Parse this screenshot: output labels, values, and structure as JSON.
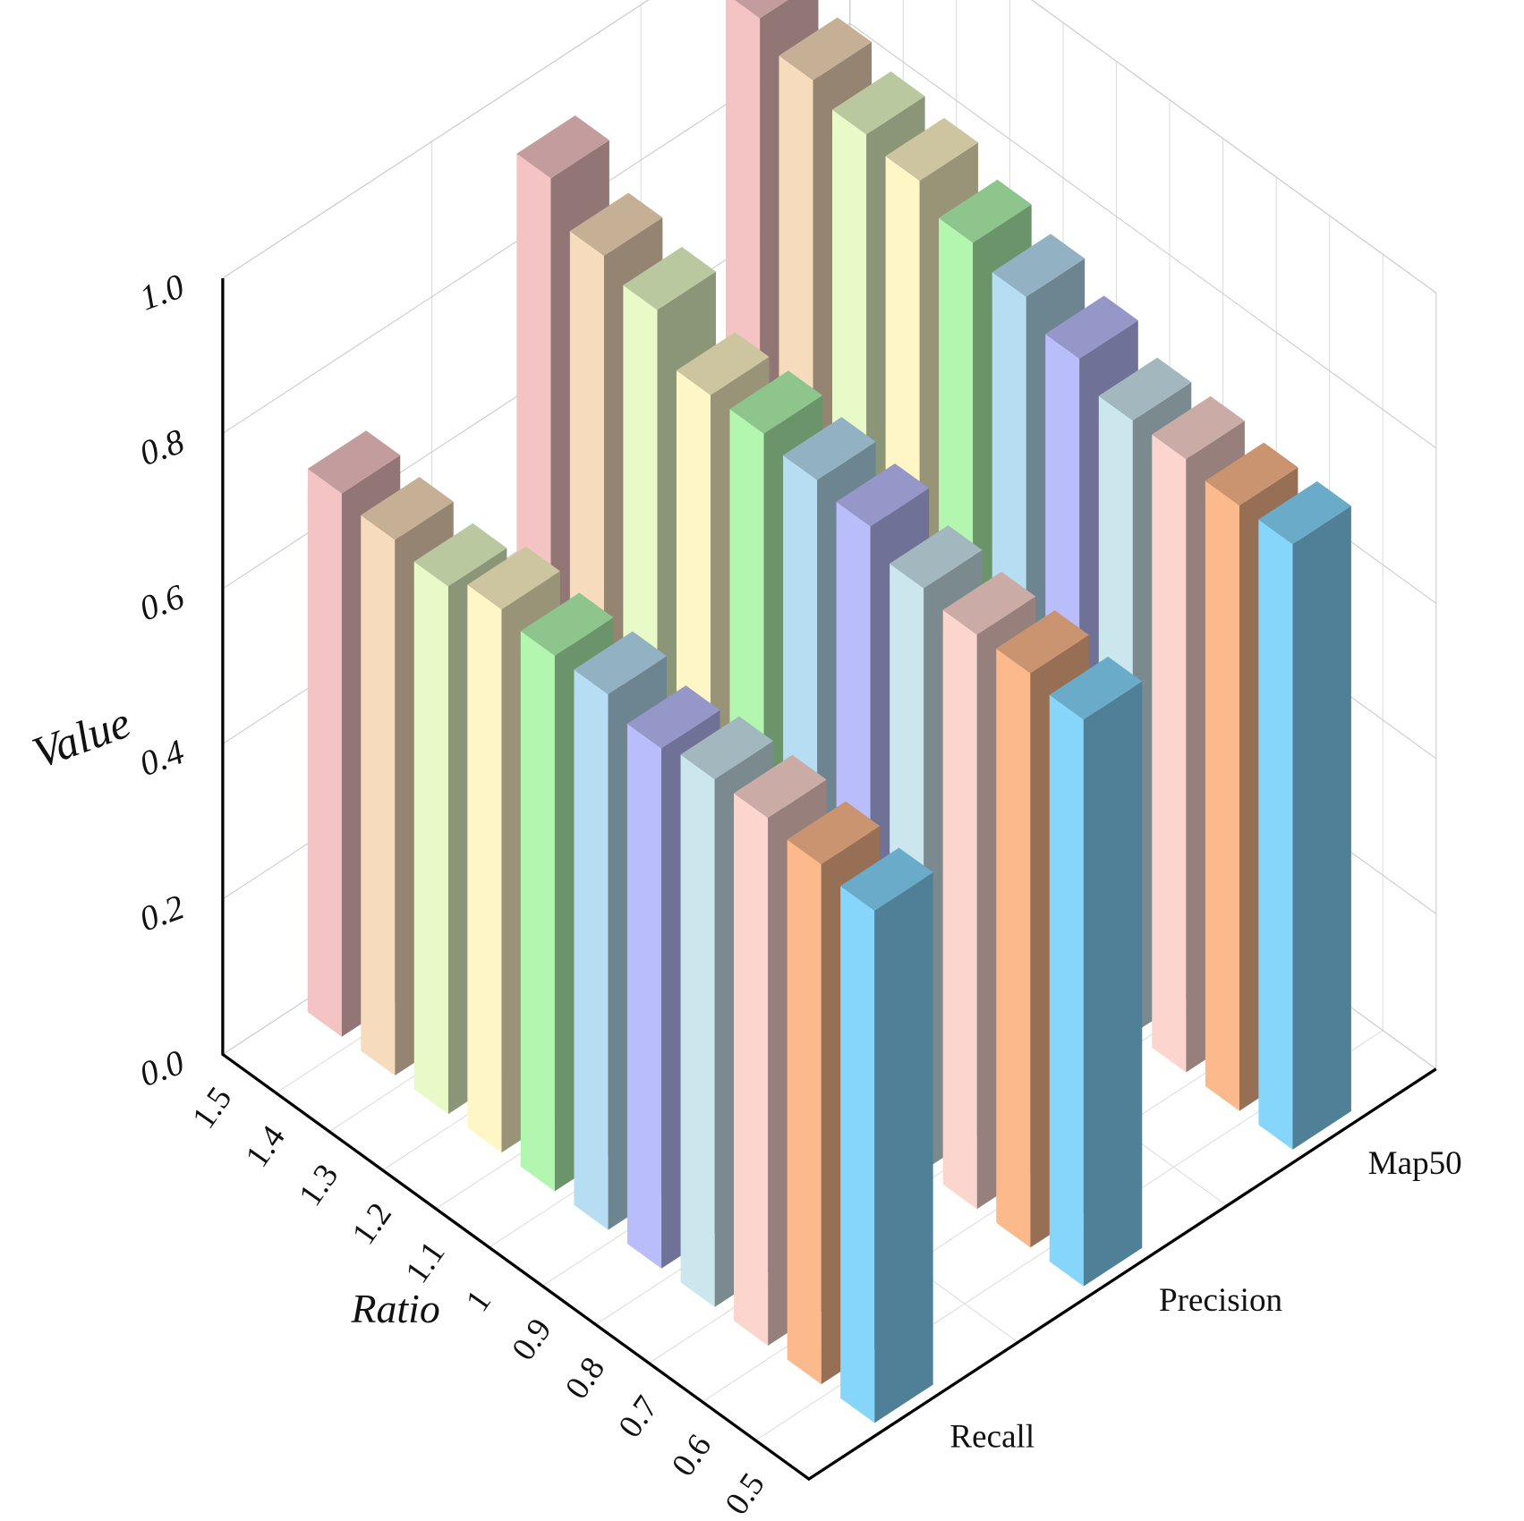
{
  "chart_data": {
    "type": "bar3d",
    "xlabel": "Ratio",
    "ylabel": "Value",
    "categories": [
      "1.5",
      "1.4",
      "1.3",
      "1.2",
      "1.1",
      "1",
      "0.9",
      "0.8",
      "0.7",
      "0.6",
      "0.5"
    ],
    "colors": [
      "#f4c4c4",
      "#f6dcbc",
      "#e8fac8",
      "#fff6c8",
      "#b2f6b0",
      "#b6ddf2",
      "#b9bdfa",
      "#cce6ee",
      "#fcd6ce",
      "#fcb98c",
      "#86d6fc"
    ],
    "series": [
      {
        "name": "Recall",
        "values": [
          0.7,
          0.69,
          0.68,
          0.7,
          0.69,
          0.69,
          0.67,
          0.68,
          0.68,
          0.67,
          0.66
        ]
      },
      {
        "name": "Precision",
        "values": [
          0.93,
          0.88,
          0.86,
          0.8,
          0.8,
          0.79,
          0.78,
          0.75,
          0.74,
          0.74,
          0.73
        ]
      },
      {
        "name": "Map50",
        "values": [
          0.96,
          0.93,
          0.91,
          0.9,
          0.87,
          0.85,
          0.82,
          0.79,
          0.79,
          0.78,
          0.78
        ]
      }
    ],
    "ylim": [
      0,
      1
    ],
    "yticks": [
      {
        "value": 0,
        "label": "0.0"
      },
      0.2,
      0.4,
      0.6,
      0.8,
      {
        "value": 1,
        "label": "1.0"
      }
    ],
    "grid": true
  }
}
